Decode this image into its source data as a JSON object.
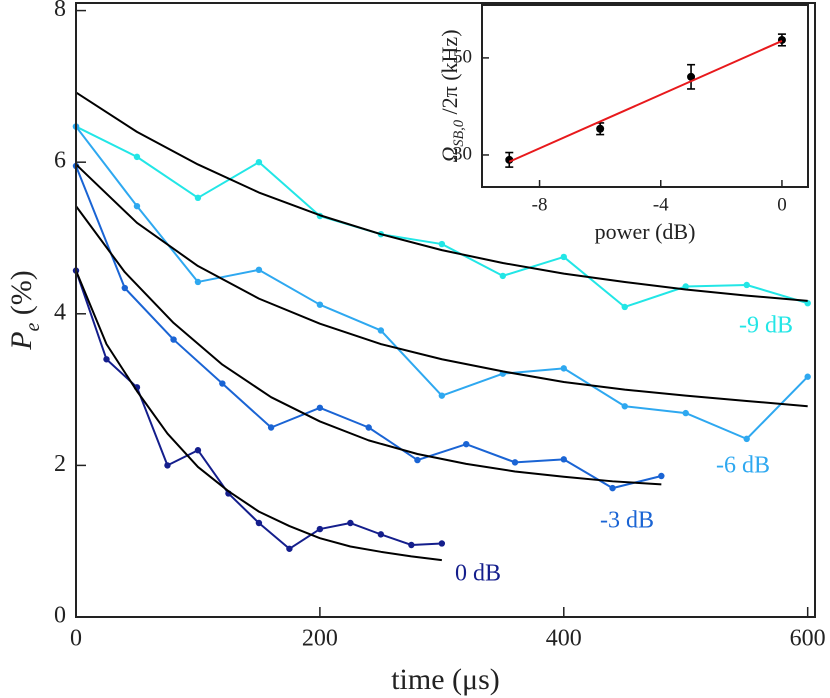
{
  "chart_data": [
    {
      "type": "line",
      "xlabel": "time (μs)",
      "ylabel": {
        "main": "P",
        "sub": "e",
        "rest": " (%)"
      },
      "xlim": [
        0,
        606
      ],
      "ylim": [
        0,
        8.1
      ],
      "xticks": [
        0,
        200,
        400,
        600
      ],
      "yticks": [
        0,
        2,
        4,
        6,
        8
      ],
      "series": [
        {
          "name": "-9 dB",
          "color": "#22e6e6",
          "line": true,
          "markers": true,
          "x": [
            0,
            50,
            100,
            150,
            200,
            250,
            300,
            350,
            400,
            450,
            500,
            550,
            600
          ],
          "values": [
            6.47,
            6.07,
            5.53,
            6.0,
            5.29,
            5.05,
            4.92,
            4.5,
            4.75,
            4.09,
            4.36,
            4.38,
            4.14
          ]
        },
        {
          "name": "-6 dB",
          "color": "#2ea8f0",
          "line": true,
          "markers": true,
          "x": [
            0,
            50,
            100,
            150,
            200,
            250,
            300,
            350,
            400,
            450,
            500,
            550,
            600
          ],
          "values": [
            6.47,
            5.42,
            4.42,
            4.58,
            4.12,
            3.78,
            2.92,
            3.21,
            3.28,
            2.78,
            2.69,
            2.35,
            3.17
          ]
        },
        {
          "name": "-3 dB",
          "color": "#1a64d4",
          "line": true,
          "markers": true,
          "x": [
            0,
            40,
            80,
            120,
            160,
            200,
            240,
            280,
            320,
            360,
            400,
            440,
            480
          ],
          "values": [
            5.95,
            4.34,
            3.66,
            3.08,
            2.5,
            2.76,
            2.5,
            2.07,
            2.28,
            2.04,
            2.08,
            1.7,
            1.86
          ]
        },
        {
          "name": "0 dB",
          "color": "#141e8c",
          "line": true,
          "markers": true,
          "x": [
            0,
            25,
            50,
            75,
            100,
            125,
            150,
            175,
            200,
            225,
            250,
            275,
            300
          ],
          "values": [
            4.57,
            3.4,
            3.03,
            2.0,
            2.2,
            1.63,
            1.24,
            0.9,
            1.16,
            1.24,
            1.09,
            0.95,
            0.97
          ]
        },
        {
          "color": "#000000",
          "line": true,
          "markers": false,
          "x": [
            0,
            50,
            100,
            150,
            200,
            250,
            300,
            350,
            400,
            450,
            500,
            550,
            600
          ],
          "values": [
            6.92,
            6.4,
            5.97,
            5.6,
            5.3,
            5.05,
            4.84,
            4.67,
            4.53,
            4.42,
            4.32,
            4.24,
            4.17
          ]
        },
        {
          "color": "#000000",
          "line": true,
          "markers": false,
          "x": [
            0,
            50,
            100,
            150,
            200,
            250,
            300,
            350,
            400,
            450,
            500,
            550,
            600
          ],
          "values": [
            5.97,
            5.2,
            4.63,
            4.2,
            3.87,
            3.6,
            3.4,
            3.24,
            3.1,
            3.0,
            2.92,
            2.85,
            2.78
          ]
        },
        {
          "color": "#000000",
          "line": true,
          "markers": false,
          "x": [
            0,
            40,
            80,
            120,
            160,
            200,
            240,
            280,
            320,
            360,
            400,
            440,
            480
          ],
          "values": [
            5.42,
            4.55,
            3.88,
            3.33,
            2.9,
            2.58,
            2.33,
            2.15,
            2.02,
            1.92,
            1.85,
            1.79,
            1.75
          ]
        },
        {
          "color": "#000000",
          "line": true,
          "markers": false,
          "x": [
            0,
            25,
            50,
            75,
            100,
            125,
            150,
            175,
            200,
            225,
            250,
            275,
            300
          ],
          "values": [
            4.57,
            3.6,
            2.98,
            2.42,
            1.98,
            1.66,
            1.39,
            1.2,
            1.04,
            0.93,
            0.86,
            0.8,
            0.75
          ]
        }
      ]
    },
    {
      "type": "scatter",
      "xlabel": "power (dB)",
      "ylabel": {
        "main": "Ω",
        "sub": "SB,0",
        "rest": " /2π (kHz)"
      },
      "xlim": [
        -9.9,
        0.86
      ],
      "ylim": [
        23.4,
        60.9
      ],
      "xticks": [
        -8,
        -4,
        0
      ],
      "yticks": [
        30,
        50
      ],
      "series": [
        {
          "color": "#000000",
          "line": false,
          "markers": true,
          "x": [
            -9,
            -6,
            -3,
            0
          ],
          "values": [
            29.0,
            35.4,
            46.1,
            53.7
          ],
          "errors": [
            1.5,
            1.2,
            2.5,
            1.2
          ]
        },
        {
          "color": "#e8191c",
          "line": true,
          "markers": false,
          "x": [
            -9,
            0
          ],
          "values": [
            28.6,
            53.5
          ]
        }
      ]
    }
  ]
}
